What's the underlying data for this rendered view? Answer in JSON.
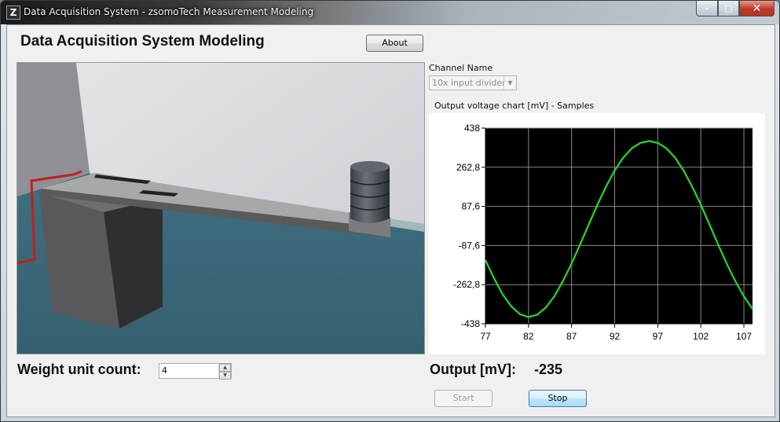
{
  "window": {
    "title": "Data Acquisition System - zsomoTech Measurement Modeling",
    "controls": {
      "minimize": "–",
      "maximize": "□",
      "close": "✕"
    }
  },
  "header": {
    "title": "Data Acquisition System Modeling",
    "about_label": "About"
  },
  "channel": {
    "label": "Channel Name",
    "selected": "10x input divider"
  },
  "chart_panel": {
    "caption": "Output voltage chart [mV] - Samples"
  },
  "chart_data": {
    "type": "line",
    "title": "",
    "xlabel": "",
    "ylabel": "",
    "xlim": [
      77,
      108
    ],
    "ylim": [
      -438,
      438
    ],
    "x_ticks": [
      77,
      82,
      87,
      92,
      97,
      102,
      107
    ],
    "y_ticks": [
      438,
      262.8,
      87.6,
      -87.6,
      -262.8,
      -438
    ],
    "x_tick_labels": [
      "77",
      "82",
      "87",
      "92",
      "97",
      "102",
      "107"
    ],
    "y_tick_labels": [
      "438",
      "262,8",
      "87,6",
      "-87,6",
      "-262,8",
      "-438"
    ],
    "grid": true,
    "background": "#000000",
    "series": [
      {
        "color": "#22dd22",
        "x": [
          77,
          78,
          79,
          80,
          81,
          82,
          83,
          84,
          85,
          86,
          87,
          88,
          89,
          90,
          91,
          92,
          93,
          94,
          95,
          96,
          97,
          98,
          99,
          100,
          101,
          102,
          103,
          104,
          105,
          106,
          107,
          108
        ],
        "y": [
          -153,
          -235,
          -306,
          -360,
          -395,
          -408,
          -398,
          -366,
          -315,
          -247,
          -168,
          -82,
          7,
          95,
          176,
          248,
          306,
          348,
          372,
          380,
          372,
          348,
          306,
          248,
          176,
          95,
          7,
          -82,
          -168,
          -247,
          -315,
          -372
        ]
      }
    ]
  },
  "weight": {
    "label": "Weight unit count:",
    "value": "4"
  },
  "output": {
    "label": "Output [mV]:",
    "value": "-235"
  },
  "actions": {
    "start_label": "Start",
    "stop_label": "Stop"
  },
  "colors": {
    "accent": "#22dd22",
    "floor": "#3d6b7a"
  }
}
